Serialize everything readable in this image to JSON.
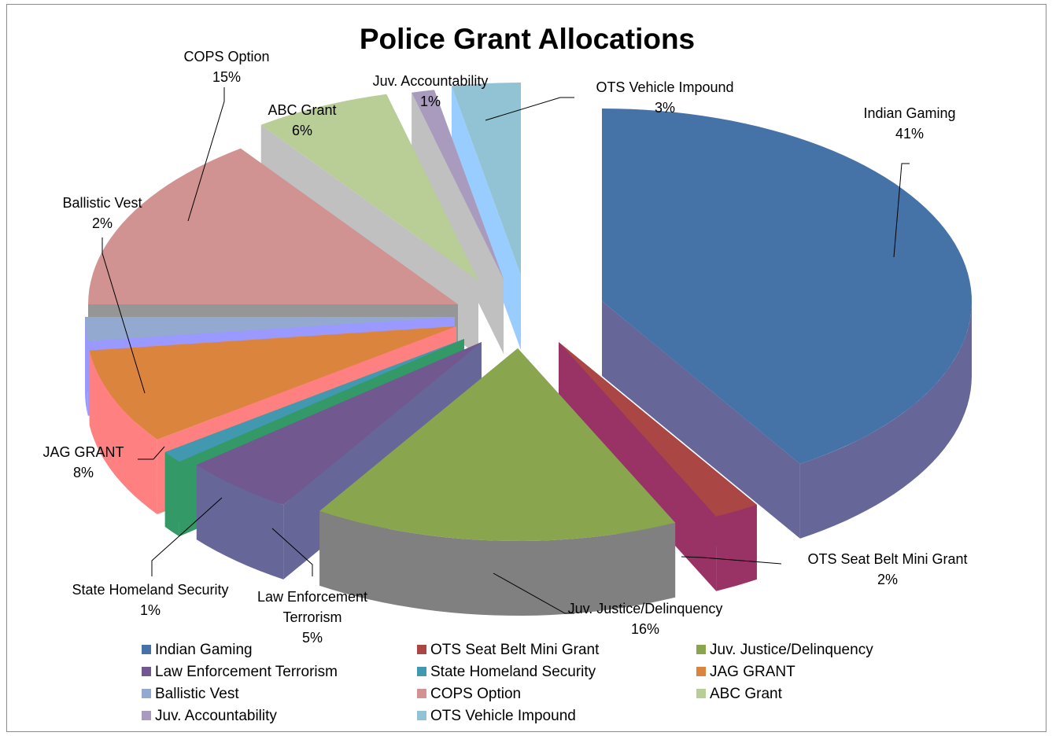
{
  "chart_data": {
    "type": "pie",
    "style": "3d-exploded",
    "title": "Police Grant Allocations",
    "legend_position": "bottom",
    "slices": [
      {
        "label": "Indian Gaming",
        "percent_label": "41%",
        "value": 41,
        "color": "#4572A7",
        "side_color": "#666699"
      },
      {
        "label": "OTS Seat Belt Mini Grant",
        "percent_label": "2%",
        "value": 2,
        "color": "#AA4643",
        "side_color": "#993366"
      },
      {
        "label": "Juv. Justice/Delinquency",
        "percent_label": "16%",
        "value": 16,
        "color": "#89A54E",
        "side_color": "#808080"
      },
      {
        "label": "Law Enforcement Terrorism",
        "percent_label": "5%",
        "value": 5,
        "color": "#71588F",
        "side_color": "#666699"
      },
      {
        "label": "State Homeland Security",
        "percent_label": "1%",
        "value": 1,
        "color": "#4198AF",
        "side_color": "#339966"
      },
      {
        "label": "JAG GRANT",
        "percent_label": "8%",
        "value": 8,
        "color": "#DB843D",
        "side_color": "#FF8080"
      },
      {
        "label": "Ballistic Vest",
        "percent_label": "2%",
        "value": 2,
        "color": "#93A9CF",
        "side_color": "#9999FF"
      },
      {
        "label": "COPS Option",
        "percent_label": "15%",
        "value": 15,
        "color": "#D19392",
        "side_color": "#969696"
      },
      {
        "label": "ABC Grant",
        "percent_label": "6%",
        "value": 6,
        "color": "#B9CD96",
        "side_color": "#C0C0C0"
      },
      {
        "label": "Juv. Accountability",
        "percent_label": "1%",
        "value": 1,
        "color": "#A99BBD",
        "side_color": "#C0C0C0"
      },
      {
        "label": "OTS Vehicle Impound",
        "percent_label": "3%",
        "value": 3,
        "color": "#92C3D4",
        "side_color": "#99CCFF"
      }
    ]
  }
}
